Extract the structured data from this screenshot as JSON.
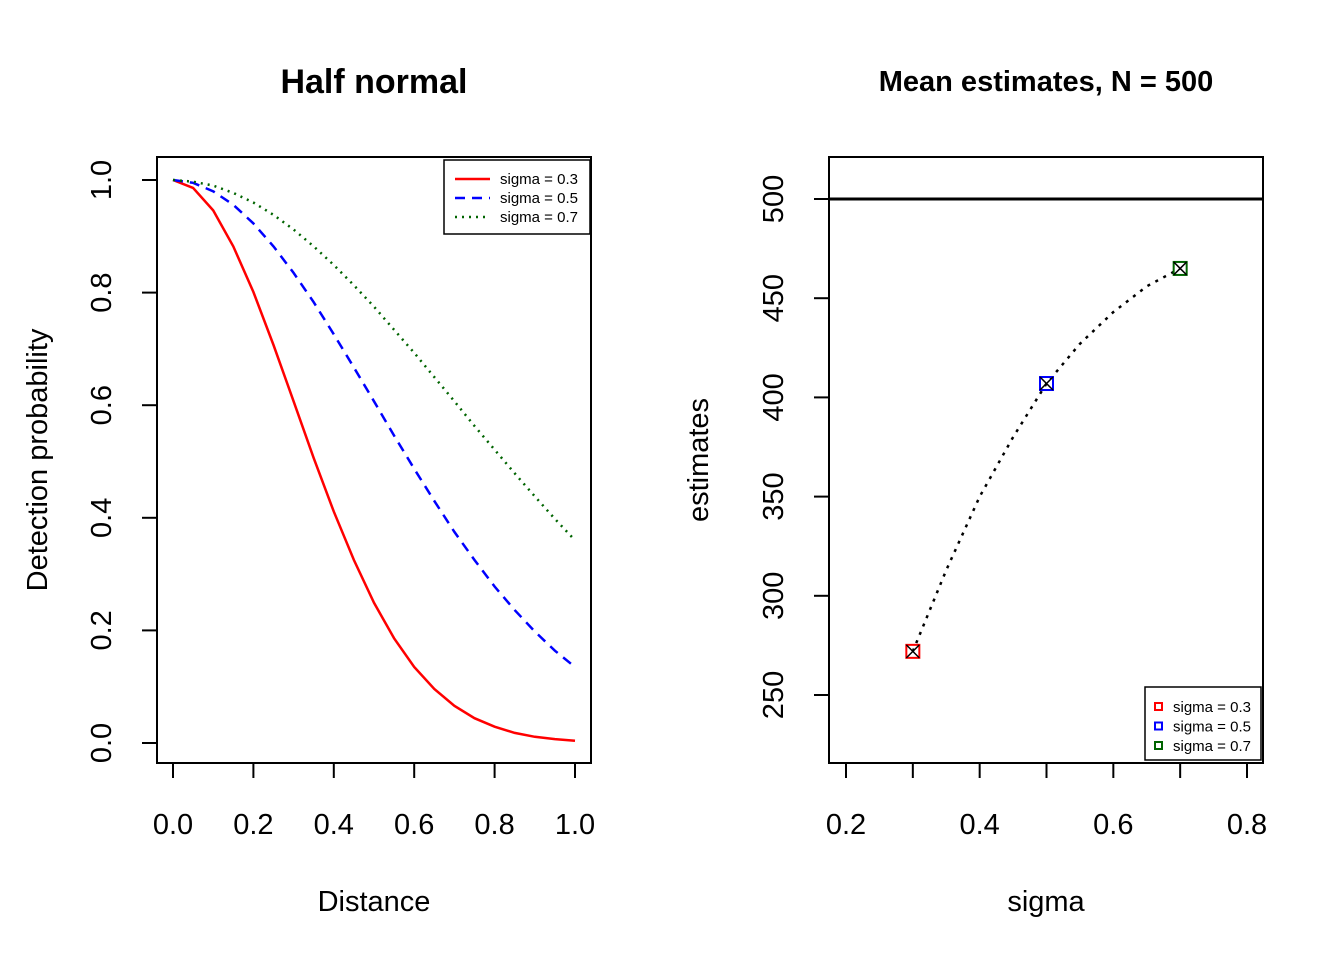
{
  "chart_data": [
    {
      "type": "line",
      "title": "Half normal",
      "xlabel": "Distance",
      "ylabel": "Detection probability",
      "xlim": [
        0.0,
        1.0
      ],
      "ylim": [
        0.0,
        1.0
      ],
      "x_ticks": [
        "0.0",
        "0.2",
        "0.4",
        "0.6",
        "0.8",
        "1.0"
      ],
      "y_ticks": [
        "0.0",
        "0.2",
        "0.4",
        "0.6",
        "0.8",
        "1.0"
      ],
      "legend_position": "top-right",
      "x": [
        0.0,
        0.05,
        0.1,
        0.15,
        0.2,
        0.25,
        0.3,
        0.35,
        0.4,
        0.45,
        0.5,
        0.55,
        0.6,
        0.65,
        0.7,
        0.75,
        0.8,
        0.85,
        0.9,
        0.95,
        1.0
      ],
      "series": [
        {
          "name": "sigma = 0.3",
          "color": "#ff0000",
          "dash": "solid",
          "values": [
            1.0,
            0.986,
            0.946,
            0.882,
            0.801,
            0.707,
            0.607,
            0.506,
            0.411,
            0.325,
            0.249,
            0.186,
            0.135,
            0.096,
            0.066,
            0.044,
            0.029,
            0.018,
            0.011,
            0.007,
            0.004
          ]
        },
        {
          "name": "sigma = 0.5",
          "color": "#0000ff",
          "dash": "dashed",
          "values": [
            1.0,
            0.995,
            0.98,
            0.956,
            0.923,
            0.882,
            0.835,
            0.783,
            0.726,
            0.667,
            0.607,
            0.546,
            0.487,
            0.43,
            0.375,
            0.325,
            0.278,
            0.236,
            0.198,
            0.164,
            0.135
          ]
        },
        {
          "name": "sigma = 0.7",
          "color": "#006400",
          "dash": "dotted",
          "values": [
            1.0,
            0.997,
            0.99,
            0.977,
            0.96,
            0.938,
            0.912,
            0.882,
            0.849,
            0.813,
            0.775,
            0.734,
            0.693,
            0.65,
            0.607,
            0.563,
            0.521,
            0.479,
            0.438,
            0.398,
            0.36
          ]
        }
      ]
    },
    {
      "type": "scatter",
      "title": "Mean estimates, N = 500",
      "xlabel": "sigma",
      "ylabel": "estimates",
      "xlim": [
        0.2,
        0.8
      ],
      "ylim": [
        250,
        500
      ],
      "x_ticks": [
        "0.2",
        "0.4",
        "0.6",
        "0.8"
      ],
      "y_ticks": [
        "250",
        "300",
        "350",
        "400",
        "450",
        "500"
      ],
      "reference_line": 500,
      "legend_position": "bottom-right",
      "points": [
        {
          "name": "sigma = 0.3",
          "x": 0.3,
          "y": 272,
          "color": "#ff0000"
        },
        {
          "name": "sigma = 0.5",
          "x": 0.5,
          "y": 407,
          "color": "#0000ff"
        },
        {
          "name": "sigma = 0.7",
          "x": 0.7,
          "y": 465,
          "color": "#006400"
        }
      ],
      "curve": {
        "x": [
          0.3,
          0.35,
          0.4,
          0.45,
          0.5,
          0.55,
          0.6,
          0.65,
          0.7
        ],
        "y": [
          272,
          313,
          350,
          380,
          407,
          427,
          443,
          456,
          465
        ]
      }
    }
  ]
}
